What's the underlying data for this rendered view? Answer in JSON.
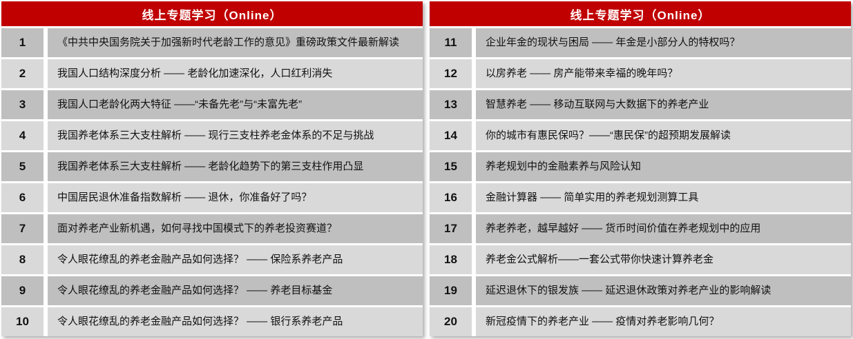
{
  "colors": {
    "header_bg": "#c00000",
    "header_text": "#ffffff",
    "row_dark": "#bfbfbf",
    "row_light": "#d9d9d9",
    "body_text": "#111111"
  },
  "tables": [
    {
      "title": "线上专题学习（Online）",
      "rows": [
        {
          "num": "1",
          "text": "《中共中央国务院关于加强新时代老龄工作的意见》重磅政策文件最新解读"
        },
        {
          "num": "2",
          "text": "我国人口结构深度分析 —— 老龄化加速深化，人口红利消失"
        },
        {
          "num": "3",
          "text": "我国人口老龄化两大特征 ——“未备先老”与“未富先老”"
        },
        {
          "num": "4",
          "text": "我国养老体系三大支柱解析 —— 现行三支柱养老金体系的不足与挑战"
        },
        {
          "num": "5",
          "text": "我国养老体系三大支柱解析 —— 老龄化趋势下的第三支柱作用凸显"
        },
        {
          "num": "6",
          "text": "中国居民退休准备指数解析 —— 退休，你准备好了吗？"
        },
        {
          "num": "7",
          "text": "面对养老产业新机遇，如何寻找中国模式下的养老投资赛道？"
        },
        {
          "num": "8",
          "text": "令人眼花缭乱的养老金融产品如何选择？ —— 保险系养老产品"
        },
        {
          "num": "9",
          "text": "令人眼花缭乱的养老金融产品如何选择？ —— 养老目标基金"
        },
        {
          "num": "10",
          "text": "令人眼花缭乱的养老金融产品如何选择？ —— 银行系养老产品"
        }
      ]
    },
    {
      "title": "线上专题学习（Online）",
      "rows": [
        {
          "num": "11",
          "text": "企业年金的现状与困局 —— 年金是小部分人的特权吗？"
        },
        {
          "num": "12",
          "text": "以房养老 —— 房产能带来幸福的晚年吗？"
        },
        {
          "num": "13",
          "text": "智慧养老 —— 移动互联网与大数据下的养老产业"
        },
        {
          "num": "14",
          "text": "你的城市有惠民保吗？——“惠民保”的超预期发展解读"
        },
        {
          "num": "15",
          "text": "养老规划中的金融素养与风险认知"
        },
        {
          "num": "16",
          "text": "金融计算器 —— 简单实用的养老规划测算工具"
        },
        {
          "num": "17",
          "text": "养老养老，越早越好 —— 货币时间价值在养老规划中的应用"
        },
        {
          "num": "18",
          "text": "养老金公式解析——一套公式带你快速计算养老金"
        },
        {
          "num": "19",
          "text": "延迟退休下的银发族 —— 延迟退休政策对养老产业的影响解读"
        },
        {
          "num": "20",
          "text": "新冠疫情下的养老产业 —— 疫情对养老影响几何？"
        }
      ]
    }
  ]
}
